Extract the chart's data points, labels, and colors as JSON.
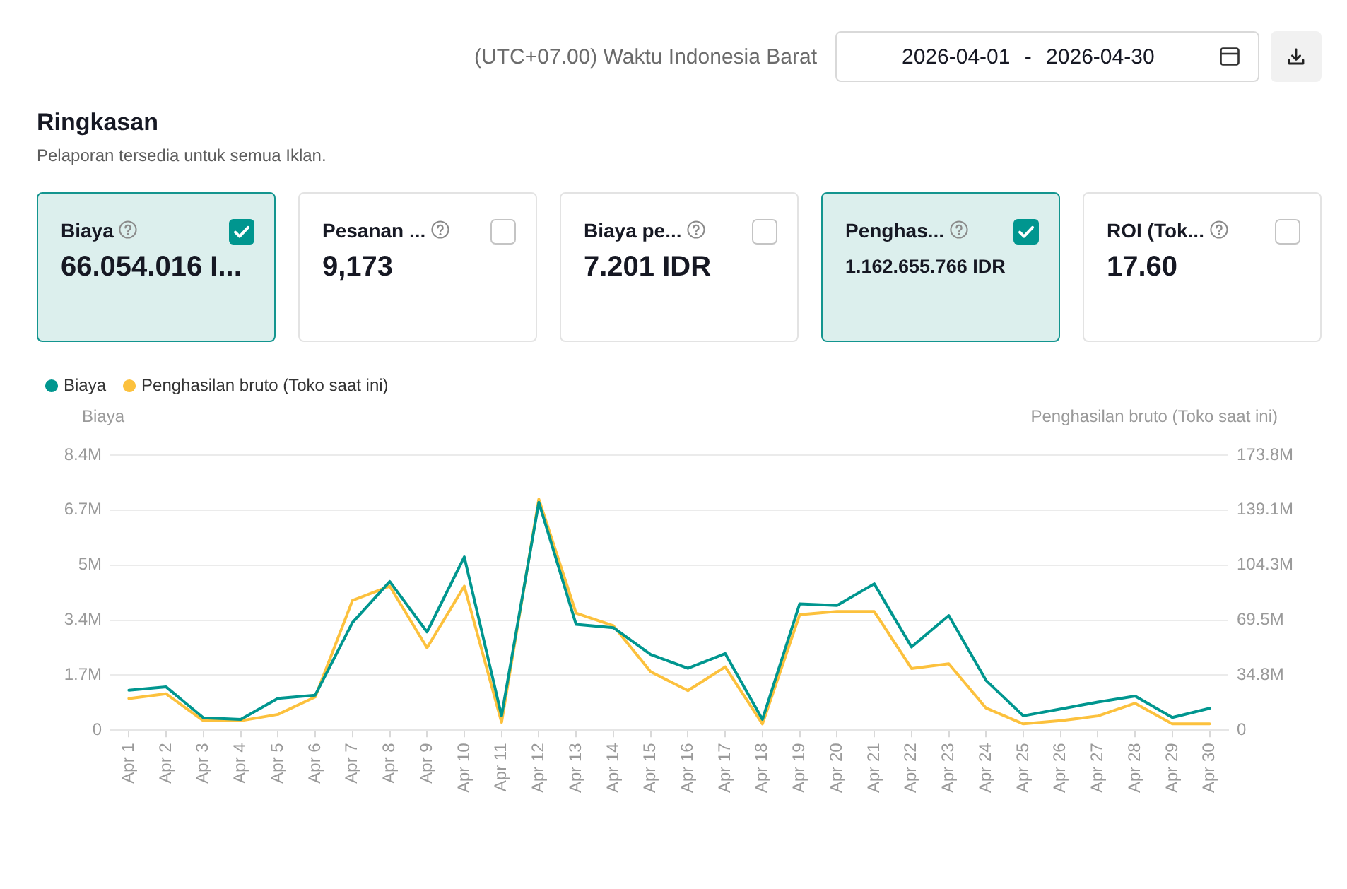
{
  "chart_data": [
    {
      "type": "other",
      "title": "Ringkasan",
      "subtitle": "Pelaporan tersedia untuk semua Iklan.",
      "annotations": [
        "(UTC+07.00) Waktu Indonesia Barat",
        "2026-04-01 - 2026-04-30",
        "Biaya",
        "66.054.016 I...",
        "Pesanan ...",
        "9,173",
        "Biaya pe...",
        "7.201 IDR",
        "Penghas...",
        "1.162.655.766 IDR",
        "ROI (Tok...",
        "17.60"
      ]
    },
    {
      "type": "line",
      "categories": [
        "Apr 1",
        "Apr 2",
        "Apr 3",
        "Apr 4",
        "Apr 5",
        "Apr 6",
        "Apr 7",
        "Apr 8",
        "Apr 9",
        "Apr 10",
        "Apr 11",
        "Apr 12",
        "Apr 13",
        "Apr 14",
        "Apr 15",
        "Apr 16",
        "Apr 17",
        "Apr 18",
        "Apr 19",
        "Apr 20",
        "Apr 21",
        "Apr 22",
        "Apr 23",
        "Apr 24",
        "Apr 25",
        "Apr 26",
        "Apr 27",
        "Apr 28",
        "Apr 29",
        "Apr 30"
      ],
      "series": [
        {
          "name": "Biaya",
          "color": "#00968f",
          "values": [
            1220000,
            1320000,
            380000,
            330000,
            970000,
            1070000,
            3290000,
            4540000,
            3000000,
            5290000,
            440000,
            6960000,
            3230000,
            3130000,
            2310000,
            1890000,
            2340000,
            330000,
            3860000,
            3810000,
            4470000,
            2540000,
            3500000,
            1520000,
            440000,
            650000,
            860000,
            1040000,
            390000,
            670000
          ]
        },
        {
          "name": "Penghasilan bruto (Toko saat ini)",
          "color": "#fcc13d",
          "axis": "y2",
          "values": [
            20000000,
            23000000,
            6000000,
            6000000,
            10000000,
            21000000,
            82000000,
            91000000,
            52000000,
            91000000,
            5000000,
            146000000,
            74000000,
            66000000,
            37000000,
            25000000,
            40000000,
            4000000,
            73000000,
            75000000,
            75000000,
            39000000,
            42000000,
            14000000,
            4000000,
            6000000,
            9000000,
            17000000,
            4000000,
            4000000
          ]
        }
      ],
      "ylabel": "Biaya",
      "y2label": "Penghasilan bruto (Toko saat ini)",
      "ylim": [
        0,
        8400000
      ],
      "yticks": [
        0,
        {
          "value": 1680000,
          "label": "1.7M"
        },
        {
          "value": 3360000,
          "label": "3.4M"
        },
        {
          "value": 5040000,
          "label": "5M"
        },
        {
          "value": 6720000,
          "label": "6.7M"
        },
        {
          "value": 8400000,
          "label": "8.4M"
        }
      ],
      "y2lim": [
        0,
        173800000
      ],
      "y2ticks": [
        0,
        {
          "value": 34800000,
          "label": "34.8M"
        },
        {
          "value": 69500000,
          "label": "69.5M"
        },
        {
          "value": 104300000,
          "label": "104.3M"
        },
        {
          "value": 139100000,
          "label": "139.1M"
        },
        {
          "value": 173800000,
          "label": "173.8M"
        }
      ],
      "grid": "y",
      "legend": "top left",
      "marker": "none",
      "line_style": "solid"
    }
  ]
}
